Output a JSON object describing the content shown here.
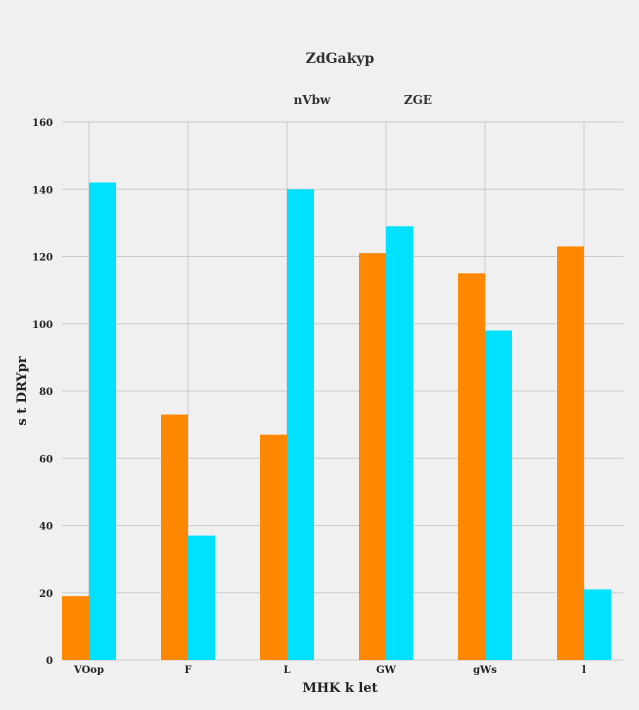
{
  "chart_data": {
    "type": "bar",
    "title": "ZdGakyp",
    "xlabel": "MHK k let",
    "ylabel": "s  t DRYpr",
    "categories": [
      "VOop",
      "F",
      "L",
      "GW",
      "gWs",
      "l"
    ],
    "series": [
      {
        "name": "nVbw",
        "color": "#ff8800",
        "values": [
          19,
          73,
          67,
          121,
          115,
          123
        ]
      },
      {
        "name": "ZGE",
        "color": "#00e0ff",
        "values": [
          142,
          37,
          140,
          129,
          98,
          21
        ]
      }
    ],
    "ylim": [
      0,
      160
    ],
    "yticks": [
      0,
      20,
      40,
      60,
      80,
      100,
      120,
      140,
      160
    ],
    "grid": true,
    "legend_position": "top-center"
  }
}
